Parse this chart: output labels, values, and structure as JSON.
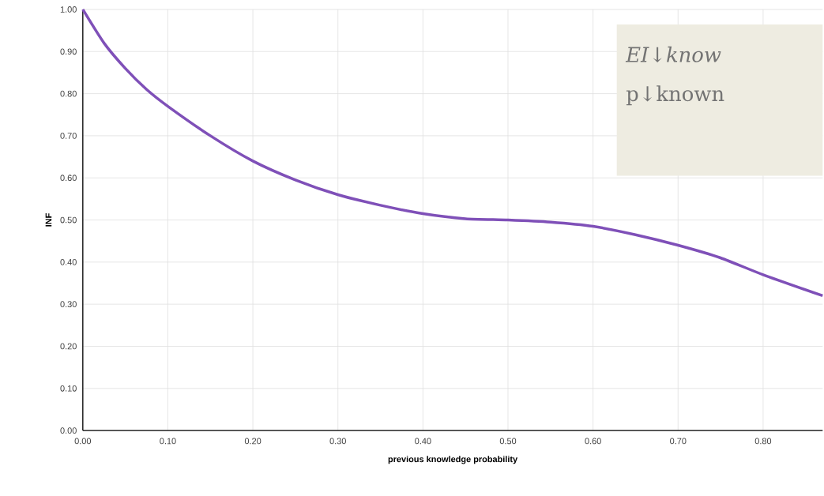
{
  "chart_data": {
    "type": "line",
    "xlabel": "previous knowledge probability",
    "ylabel": "INF",
    "x": [
      0,
      0.025,
      0.05,
      0.075,
      0.1,
      0.15,
      0.2,
      0.25,
      0.3,
      0.35,
      0.4,
      0.45,
      0.5,
      0.55,
      0.6,
      0.65,
      0.7,
      0.75,
      0.8,
      0.87
    ],
    "series": [
      {
        "color": "#7f50b8",
        "values": [
          1.0,
          0.92,
          0.86,
          0.81,
          0.77,
          0.7,
          0.64,
          0.595,
          0.56,
          0.535,
          0.515,
          0.503,
          0.5,
          0.495,
          0.485,
          0.465,
          0.44,
          0.41,
          0.37,
          0.32
        ]
      }
    ],
    "xlim": [
      0,
      0.87
    ],
    "ylim": [
      0,
      1
    ],
    "xticks": [
      {
        "value": 0,
        "label": "0.00"
      },
      {
        "value": 0.1,
        "label": "0.10"
      },
      {
        "value": 0.2,
        "label": "0.20"
      },
      {
        "value": 0.3,
        "label": "0.30"
      },
      {
        "value": 0.4,
        "label": "0.40"
      },
      {
        "value": 0.5,
        "label": "0.50"
      },
      {
        "value": 0.6,
        "label": "0.60"
      },
      {
        "value": 0.7,
        "label": "0.70"
      },
      {
        "value": 0.8,
        "label": "0.80"
      }
    ],
    "yticks": [
      {
        "value": 0,
        "label": "0.00"
      },
      {
        "value": 0.1,
        "label": "0.10"
      },
      {
        "value": 0.2,
        "label": "0.20"
      },
      {
        "value": 0.3,
        "label": "0.30"
      },
      {
        "value": 0.4,
        "label": "0.40"
      },
      {
        "value": 0.5,
        "label": "0.50"
      },
      {
        "value": 0.6,
        "label": "0.60"
      },
      {
        "value": 0.7,
        "label": "0.70"
      },
      {
        "value": 0.8,
        "label": "0.80"
      },
      {
        "value": 0.9,
        "label": "0.90"
      },
      {
        "value": 1,
        "label": "1.00"
      }
    ],
    "grid": true,
    "marker": "none",
    "line_style": "solid",
    "annotations": [
      "EI↓know",
      "p↓known"
    ]
  }
}
